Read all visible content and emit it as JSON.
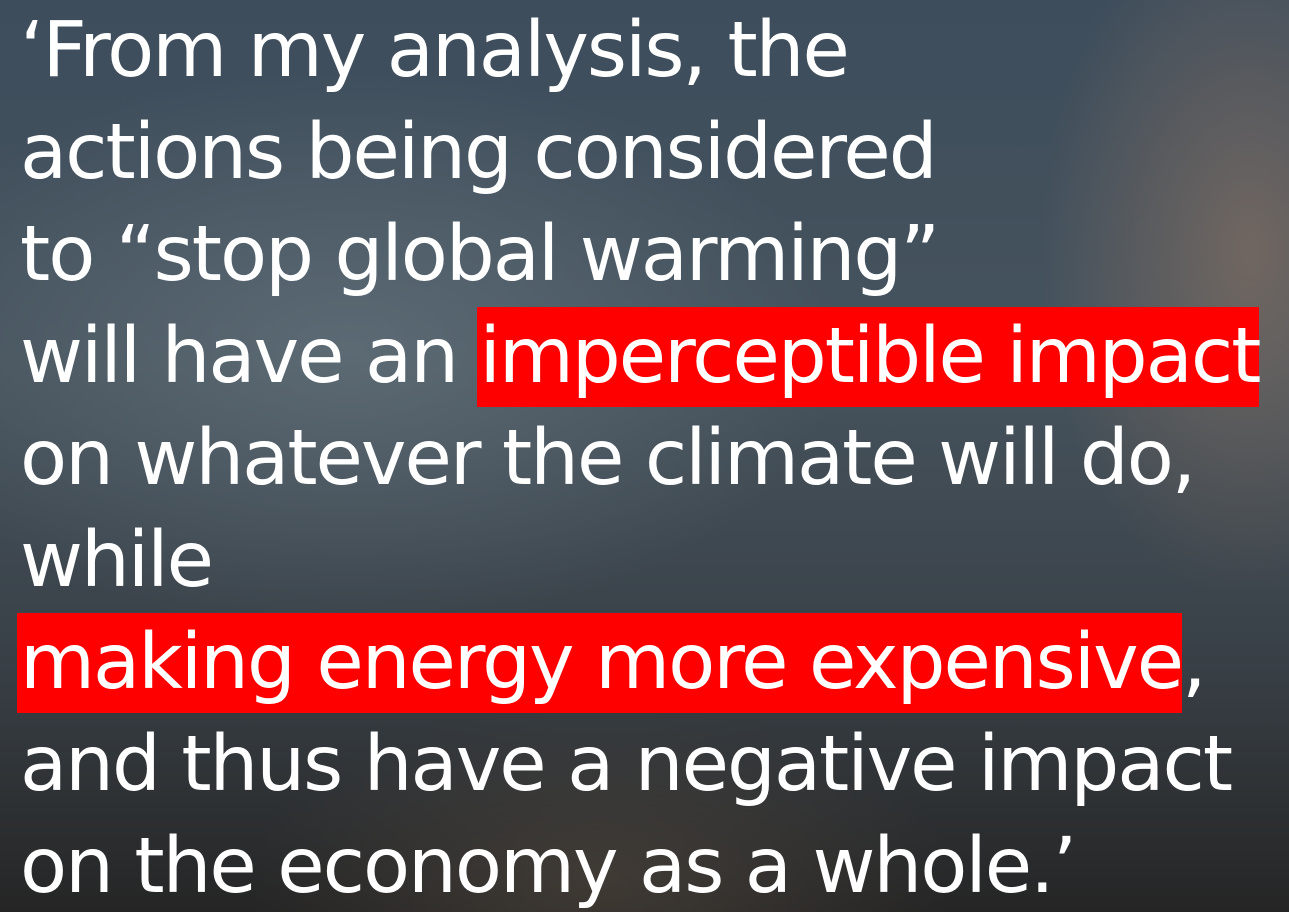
{
  "quote": {
    "lines": [
      {
        "segments": [
          {
            "text": "‘From my analysis, the",
            "highlight": false
          }
        ]
      },
      {
        "segments": [
          {
            "text": "actions being considered",
            "highlight": false
          }
        ]
      },
      {
        "segments": [
          {
            "text": "to “stop global warming”",
            "highlight": false
          }
        ]
      },
      {
        "segments": [
          {
            "text": "will have an ",
            "highlight": false
          },
          {
            "text": "imperceptible impact",
            "highlight": true
          }
        ]
      },
      {
        "segments": [
          {
            "text": "on whatever the climate will do,",
            "highlight": false
          }
        ]
      },
      {
        "segments": [
          {
            "text": "while",
            "highlight": false
          }
        ]
      },
      {
        "segments": [
          {
            "text": "making energy more expensive",
            "highlight": true
          },
          {
            "text": ",",
            "highlight": false
          }
        ]
      },
      {
        "segments": [
          {
            "text": "and thus have a negative impact",
            "highlight": false
          }
        ]
      },
      {
        "segments": [
          {
            "text": "on the economy as a whole.’",
            "highlight": false
          }
        ]
      }
    ]
  }
}
